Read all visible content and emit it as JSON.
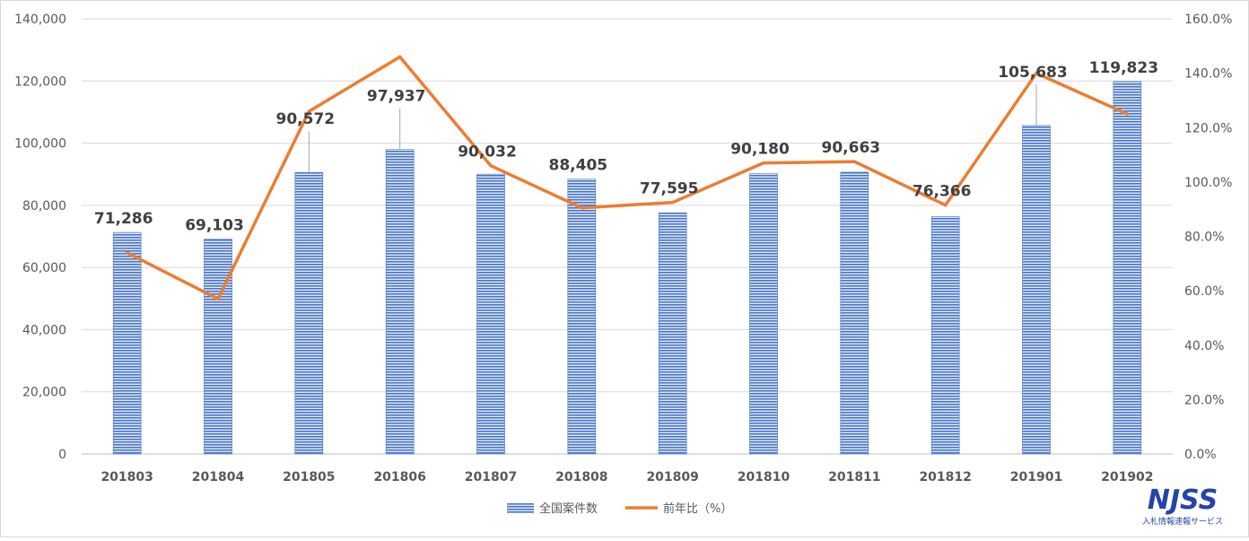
{
  "chart_data": {
    "type": "bar",
    "categories": [
      "201803",
      "201804",
      "201805",
      "201806",
      "201807",
      "201808",
      "201809",
      "201810",
      "201811",
      "201812",
      "201901",
      "201902"
    ],
    "series": [
      {
        "name": "全国案件数",
        "type": "bar",
        "axis": "left",
        "values": [
          71286,
          69103,
          90572,
          97937,
          90032,
          88405,
          77595,
          90180,
          90663,
          76366,
          105683,
          119823
        ],
        "labels": [
          "71,286",
          "69,103",
          "90,572",
          "97,937",
          "90,032",
          "88,405",
          "77,595",
          "90,180",
          "90,663",
          "76,366",
          "105,683",
          "119,823"
        ]
      },
      {
        "name": "前年比（%）",
        "type": "line",
        "axis": "right",
        "values": [
          74,
          57,
          126,
          146,
          106,
          90.5,
          92.5,
          107,
          107.5,
          91.5,
          140,
          125
        ]
      }
    ],
    "ylim": [
      0,
      140000
    ],
    "y_ticks": [
      "0",
      "20,000",
      "40,000",
      "60,000",
      "80,000",
      "100,000",
      "120,000",
      "140,000"
    ],
    "y2lim": [
      0,
      160
    ],
    "y2_ticks": [
      "0.0%",
      "20.0%",
      "40.0%",
      "60.0%",
      "80.0%",
      "100.0%",
      "120.0%",
      "140.0%",
      "160.0%"
    ],
    "grid": true,
    "legend_position": "bottom",
    "colors": {
      "bar": "#4472c4",
      "bar_stripe": "#dce6f5",
      "line": "#ed7d31",
      "grid": "#d9d9d9"
    }
  },
  "logo": {
    "text": "NJSS",
    "subtitle": "入札情報速報サービス"
  }
}
